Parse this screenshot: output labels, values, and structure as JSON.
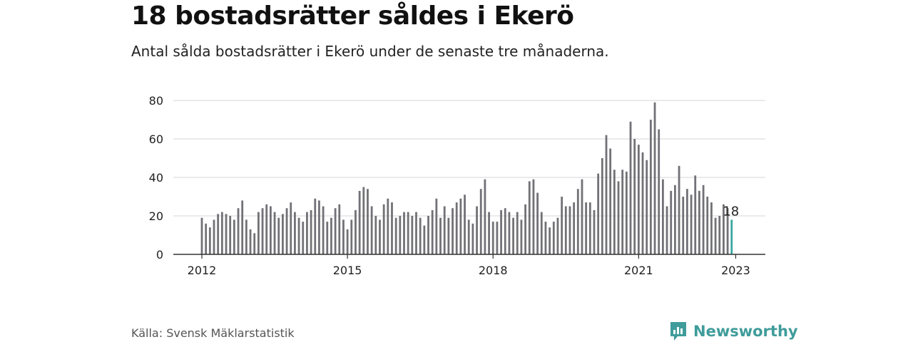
{
  "title": "18 bostadsrätter såldes i Ekerö",
  "subtitle": "Antal sålda bostadsrätter i Ekerö under de senaste tre månaderna.",
  "source": "Källa: Svensk Mäklarstatistik",
  "brand": "Newsworthy",
  "colors": {
    "bar": "#717177",
    "highlight": "#3aa6a0",
    "grid": "#dddddd",
    "brand": "#3f9c9a"
  },
  "chart_data": {
    "type": "bar",
    "x_start": "2012-01",
    "frequency": "monthly",
    "values": [
      19,
      16,
      14,
      18,
      21,
      22,
      21,
      20,
      18,
      24,
      28,
      18,
      13,
      11,
      22,
      24,
      26,
      25,
      22,
      19,
      21,
      24,
      27,
      22,
      19,
      17,
      22,
      23,
      29,
      28,
      25,
      17,
      19,
      24,
      26,
      18,
      13,
      18,
      23,
      33,
      35,
      34,
      25,
      20,
      18,
      26,
      29,
      27,
      19,
      20,
      22,
      22,
      20,
      22,
      19,
      15,
      20,
      23,
      29,
      19,
      25,
      19,
      24,
      27,
      29,
      31,
      18,
      16,
      25,
      34,
      39,
      22,
      17,
      17,
      23,
      24,
      22,
      19,
      22,
      18,
      26,
      38,
      39,
      32,
      22,
      17,
      14,
      17,
      19,
      30,
      25,
      25,
      27,
      34,
      39,
      27,
      27,
      23,
      42,
      50,
      62,
      55,
      44,
      38,
      44,
      43,
      69,
      60,
      57,
      53,
      49,
      70,
      79,
      65,
      39,
      25,
      33,
      36,
      46,
      30,
      34,
      31,
      41,
      33,
      36,
      30,
      27,
      19,
      20,
      26,
      24,
      18
    ],
    "highlight_last": true,
    "label_last": "18",
    "x_tick_labels": [
      "2012",
      "2015",
      "2018",
      "2021",
      "2023"
    ],
    "y_ticks": [
      "0",
      "20",
      "40",
      "60",
      "80"
    ],
    "ylim": [
      0,
      80
    ],
    "grid": true
  }
}
